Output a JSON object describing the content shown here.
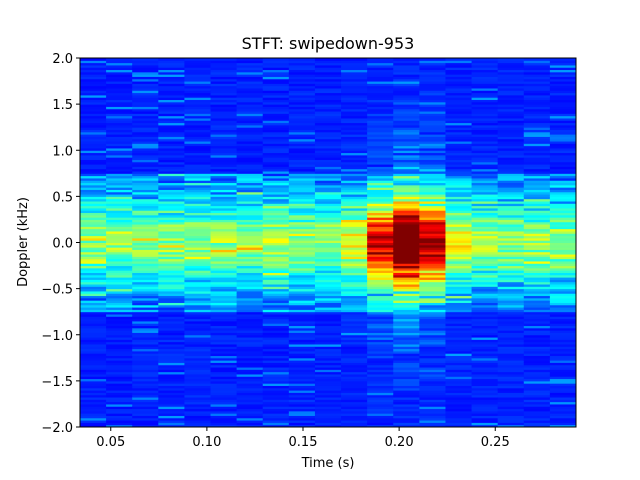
{
  "chart_data": {
    "type": "heatmap",
    "title": "STFT: swipedown-953",
    "xlabel": "Time (s)",
    "ylabel": "Doppler (kHz)",
    "xlim": [
      0.034,
      0.292
    ],
    "ylim": [
      -2.0,
      2.0
    ],
    "x_ticks": [
      0.05,
      0.1,
      0.15,
      0.2,
      0.25
    ],
    "x_tick_labels": [
      "0.05",
      "0.10",
      "0.15",
      "0.20",
      "0.25"
    ],
    "y_ticks": [
      -2.0,
      -1.5,
      -1.0,
      -0.5,
      0.0,
      0.5,
      1.0,
      1.5,
      2.0
    ],
    "y_tick_labels": [
      "−2.0",
      "−1.5",
      "−1.0",
      "−0.5",
      "0.0",
      "0.5",
      "1.0",
      "1.5",
      "2.0"
    ],
    "colormap": "jet",
    "time_bins": 19,
    "doppler_bins": 160,
    "grid": false,
    "legend": false
  }
}
